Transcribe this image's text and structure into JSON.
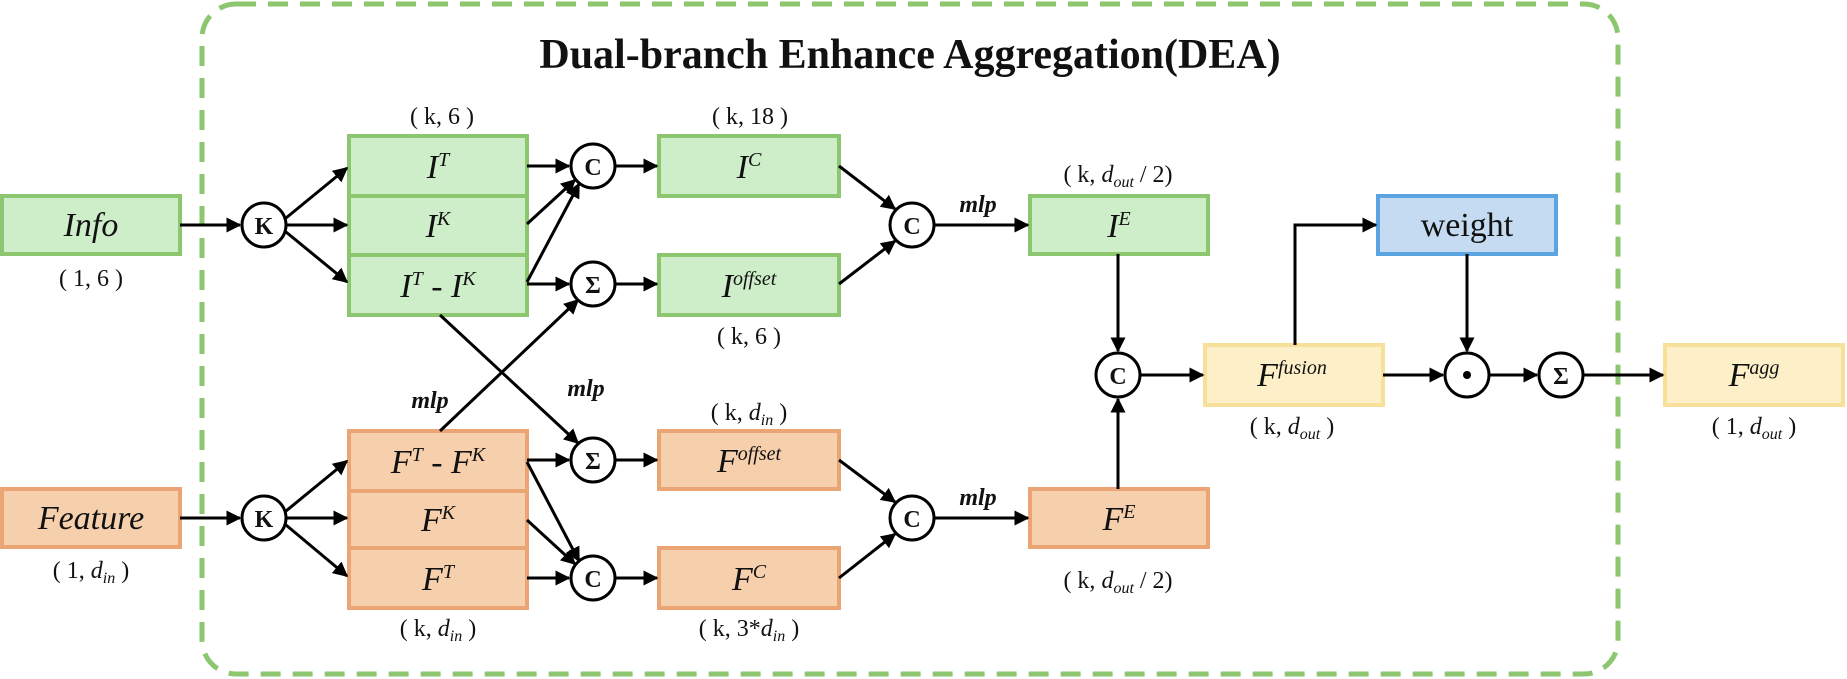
{
  "title": "Dual-branch Enhance Aggregation(DEA)",
  "inputs": {
    "info": {
      "label": "Info",
      "dim": "( 1, 6 )"
    },
    "feature": {
      "label": "Feature",
      "dim_prefix": "( 1, ",
      "dim_var": "d",
      "dim_sub": "in",
      "dim_suffix": " )"
    }
  },
  "operators": {
    "knn": "K",
    "concat": "C",
    "sum": "Σ",
    "dot": "⊙"
  },
  "info_branch": {
    "it": {
      "base": "I",
      "sup": "T"
    },
    "ik": {
      "base": "I",
      "sup": "K"
    },
    "diff": {
      "base1": "I",
      "sup1": "T",
      "mid": " - ",
      "base2": "I",
      "sup2": "K"
    },
    "stack_dim": "( k, 6 )",
    "ic": {
      "base": "I",
      "sup": "C",
      "dim": "( k, 18 )"
    },
    "ioffset": {
      "base": "I",
      "sup": "offset",
      "dim": "( k, 6 )"
    },
    "ie": {
      "base": "I",
      "sup": "E",
      "dim_prefix": "( k, ",
      "dim_var": "d",
      "dim_sub": "out",
      "dim_suffix": " / 2)"
    }
  },
  "feature_branch": {
    "diff": {
      "base1": "F",
      "sup1": "T",
      "mid": " - ",
      "base2": "F",
      "sup2": "K"
    },
    "fk": {
      "base": "F",
      "sup": "K"
    },
    "ft": {
      "base": "F",
      "sup": "T"
    },
    "stack_dim_prefix": "( k, ",
    "stack_dim_var": "d",
    "stack_dim_sub": "in",
    "stack_dim_suffix": " )",
    "foffset": {
      "base": "F",
      "sup": "offset",
      "dim_prefix": "( k, ",
      "dim_var": "d",
      "dim_sub": "in",
      "dim_suffix": " )"
    },
    "fc": {
      "base": "F",
      "sup": "C",
      "dim_prefix": "( k, 3*",
      "dim_var": "d",
      "dim_sub": "in",
      "dim_suffix": " )"
    },
    "fe": {
      "base": "F",
      "sup": "E",
      "dim_prefix": "( k, ",
      "dim_var": "d",
      "dim_sub": "out",
      "dim_suffix": " / 2)"
    }
  },
  "fusion": {
    "ffusion": {
      "base": "F",
      "sup": "fusion",
      "dim_prefix": "( k, ",
      "dim_var": "d",
      "dim_sub": "out",
      "dim_suffix": " )"
    },
    "weight": "weight",
    "fagg": {
      "base": "F",
      "sup": "agg",
      "dim_prefix": "( 1, ",
      "dim_var": "d",
      "dim_sub": "out",
      "dim_suffix": " )"
    }
  },
  "mlp_label": "mlp",
  "colors": {
    "green_fill": "#cdeec8",
    "green_stroke": "#8cc66f",
    "orange_fill": "#f6cfad",
    "orange_stroke": "#eba575",
    "yellow_fill": "#fdf0c9",
    "yellow_stroke": "#f7e19a",
    "blue_fill": "#c4dbf1",
    "blue_stroke": "#5aa4e1",
    "dashed_border": "#8cc66f"
  }
}
